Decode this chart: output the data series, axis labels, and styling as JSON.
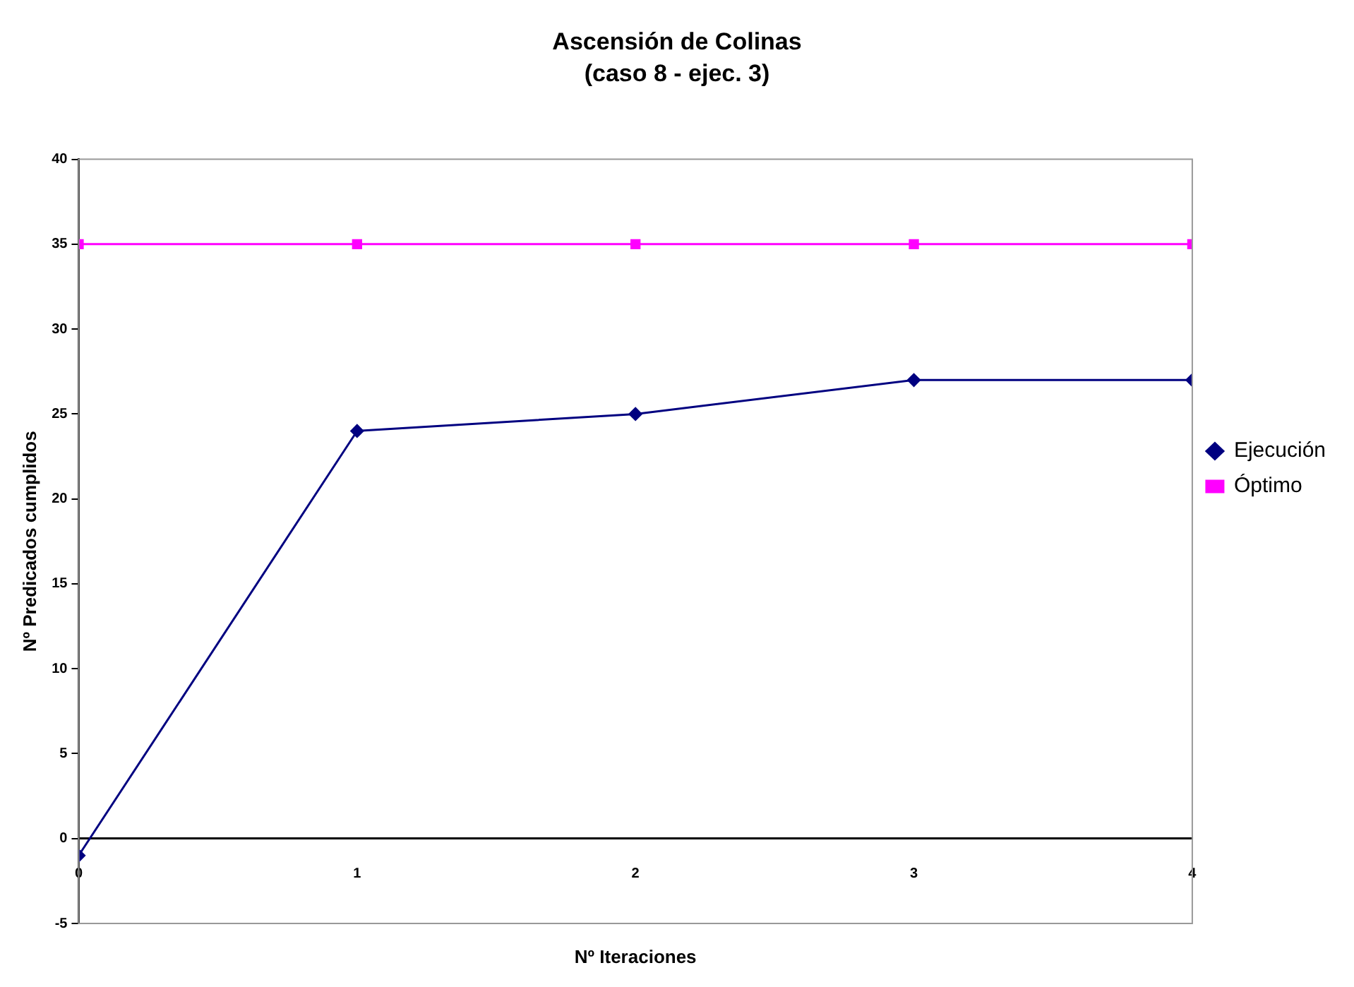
{
  "chart_data": {
    "type": "line",
    "title": "Ascensión de Colinas",
    "subtitle": "(caso 8 - ejec. 3)",
    "xlabel": "Nº Iteraciones",
    "ylabel": "Nº Predicados cumplidos",
    "x": [
      0,
      1,
      2,
      3,
      4
    ],
    "xlim": [
      0,
      4
    ],
    "xticks": [
      0,
      1,
      2,
      3,
      4
    ],
    "ylim": [
      -5,
      40
    ],
    "yticks": [
      -5,
      0,
      5,
      10,
      15,
      20,
      25,
      30,
      35,
      40
    ],
    "grid": false,
    "legend": "right",
    "series": [
      {
        "name": "Ejecución",
        "color": "#000080",
        "marker": "diamond",
        "values": [
          -1,
          24,
          25,
          27,
          27
        ]
      },
      {
        "name": "Óptimo",
        "color": "#ff00ff",
        "marker": "square",
        "values": [
          35,
          35,
          35,
          35,
          35
        ]
      }
    ]
  }
}
